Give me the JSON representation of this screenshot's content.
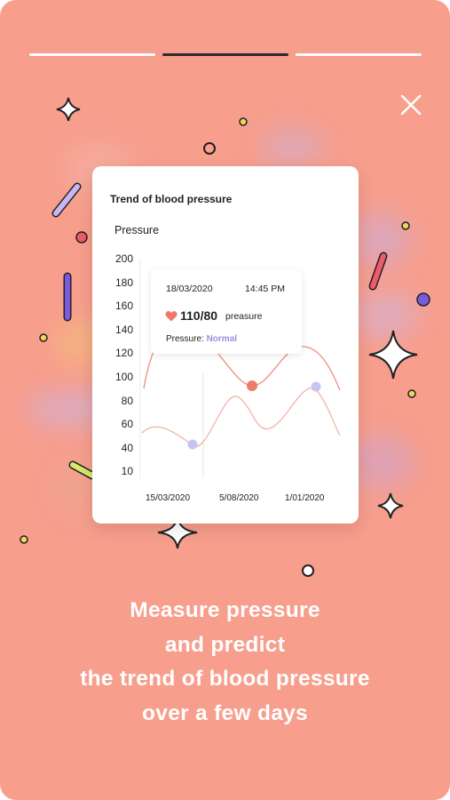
{
  "colors": {
    "background": "#F79E8D",
    "progress_active": "#2b2b2b",
    "progress_inactive": "#ffffff",
    "line_primary": "#EF8E7E",
    "line_secondary": "#F2B3A8",
    "marker_purple": "#C8C4F2",
    "marker_red": "#EE7A6A",
    "status_normal": "#9B8FE0"
  },
  "progress": {
    "segments": [
      {
        "state": "done"
      },
      {
        "state": "active"
      },
      {
        "state": "pending"
      }
    ]
  },
  "close_icon": "close-icon",
  "card": {
    "title": "Trend of blood pressure",
    "y_axis_title": "Pressure",
    "tooltip": {
      "date": "18/03/2020",
      "time": "14:45 PM",
      "value": "110/80",
      "unit": "preasure",
      "status_label": "Pressure: ",
      "status_value": "Normal",
      "icon": "heart-icon"
    }
  },
  "chart_data": {
    "type": "line",
    "title": "Trend of blood pressure",
    "ylabel": "Pressure",
    "y_ticks": [
      "200",
      "180",
      "160",
      "140",
      "120",
      "100",
      "80",
      "60",
      "40",
      "10"
    ],
    "x_ticks": [
      "15/03/2020",
      "5/08/2020",
      "1/01/2020"
    ],
    "grid": false
  },
  "headline": {
    "line1": "Measure pressure",
    "line2": "and predict",
    "line3": "the trend of blood pressure",
    "line4": "over a few days"
  }
}
